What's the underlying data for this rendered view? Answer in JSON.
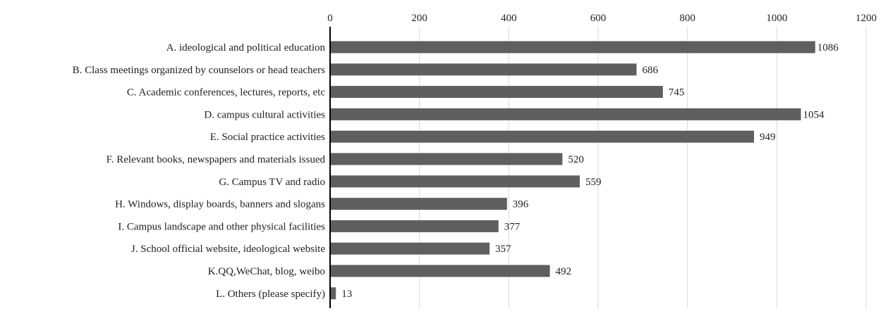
{
  "chart_data": {
    "type": "bar",
    "orientation": "horizontal",
    "title": "",
    "xlabel": "",
    "ylabel": "",
    "xlim": [
      0,
      1200
    ],
    "x_ticks": [
      0,
      200,
      400,
      600,
      800,
      1000,
      1200
    ],
    "x_tick_labels": [
      "0",
      "200",
      "400",
      "600",
      "800",
      "1000",
      "1200"
    ],
    "x_axis_position": "top",
    "grid": true,
    "legend": "none",
    "categories": [
      "A. ideological and political education",
      "B. Class meetings organized by counselors or head teachers",
      "C. Academic conferences, lectures, reports, etc",
      "D. campus cultural activities",
      "E. Social practice activities",
      "F. Relevant books, newspapers and materials issued",
      "G. Campus TV and radio",
      "H. Windows, display boards, banners and slogans",
      "I. Campus landscape and other physical facilities",
      "J. School official website, ideological website",
      "K.QQ,WeChat, blog, weibo",
      "L. Others (please specify)"
    ],
    "values": [
      1086,
      686,
      745,
      1054,
      949,
      520,
      559,
      396,
      377,
      357,
      492,
      13
    ],
    "data_labels": [
      "1086",
      "686",
      "745",
      "1054",
      "949",
      "520",
      "559",
      "396",
      "377",
      "357",
      "492",
      "13"
    ],
    "colors": {
      "bar": "#5f5f5f",
      "grid": "#d9d9d9",
      "axis": "#000000",
      "text": "#222222"
    }
  }
}
